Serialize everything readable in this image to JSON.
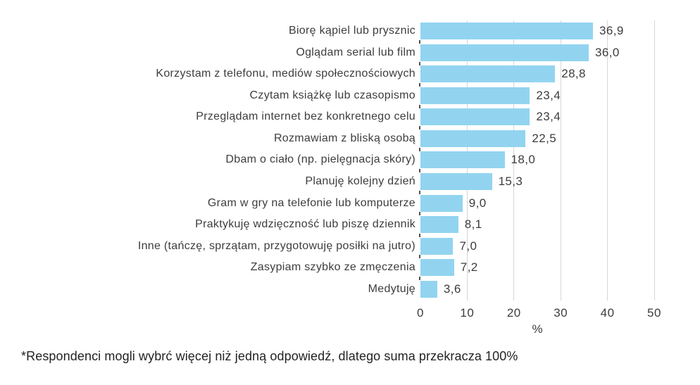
{
  "chart_data": {
    "type": "bar",
    "orientation": "horizontal",
    "title": "",
    "xlabel": "%",
    "ylabel": "",
    "xlim": [
      0,
      50
    ],
    "x_ticks": [
      0,
      10,
      20,
      30,
      40,
      50
    ],
    "grid": true,
    "legend": false,
    "bar_color": "#92d4f0",
    "gridline_color": "#d6d6d6",
    "text_color": "#3d3d3d",
    "categories": [
      "Biorę kąpiel lub prysznic",
      "Oglądam serial lub film",
      "Korzystam z telefonu, mediów społecznościowych",
      "Czytam książkę lub czasopismo",
      "Przeglądam internet bez konkretnego celu",
      "Rozmawiam z bliską osobą",
      "Dbam o ciało (np. pielęgnacja skóry)",
      "Planuję kolejny dzień",
      "Gram w gry na telefonie lub komputerze",
      "Praktykuję wdzięczność lub piszę dziennik",
      "Inne (tańczę, sprzątam, przygotowuję posiłki na jutro)",
      "Zasypiam szybko ze zmęczenia",
      "Medytuję"
    ],
    "values": [
      36.9,
      36.0,
      28.8,
      23.4,
      23.4,
      22.5,
      18.0,
      15.3,
      9.0,
      8.1,
      7.0,
      7.2,
      3.6
    ],
    "value_labels": [
      "36,9",
      "36,0",
      "28,8",
      "23,4",
      "23,4",
      "22,5",
      "18,0",
      "15,3",
      "9,0",
      "8,1",
      "7,0",
      "7,2",
      "3,6"
    ]
  },
  "footnote": "*Respondenci mogli wybrć więcej niż jedną odpowiedź, dlatego suma przekracza 100%"
}
